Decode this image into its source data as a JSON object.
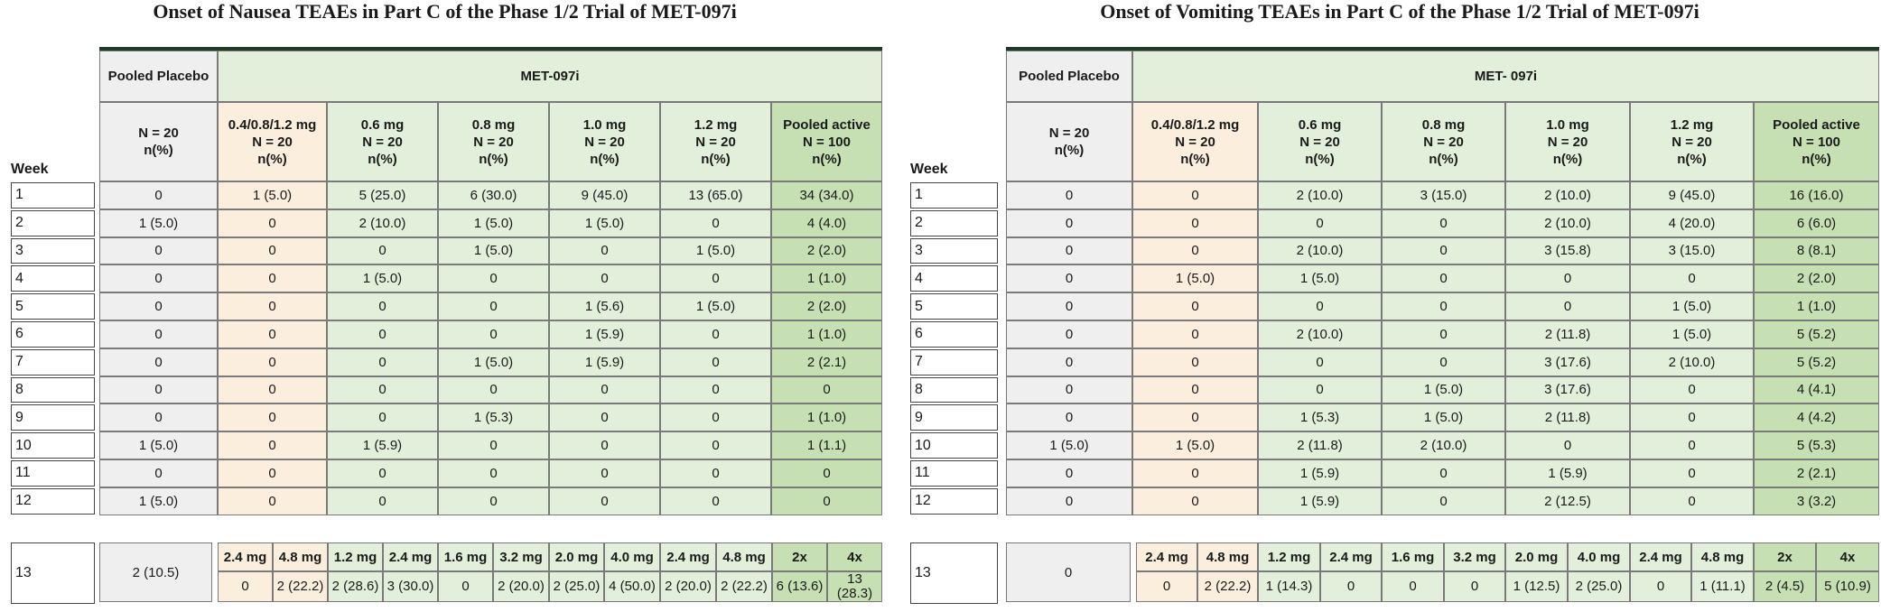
{
  "colors": {
    "placebo": "#efefef",
    "low_dose": "#fbeedc",
    "dose": "#e2efda",
    "pooled": "#c6e0b4",
    "rule": "#1f3b26"
  },
  "panels": [
    {
      "title": "Onset of Nausea TEAEs in Part C of the Phase 1/2 Trial of MET-097i",
      "week_label": "Week",
      "placebo_group": "Pooled Placebo",
      "active_group": "MET-097i",
      "columns": [
        {
          "dose": "",
          "n": "N = 20",
          "pct": "n(%)"
        },
        {
          "dose": "0.4/0.8/1.2 mg",
          "n": "N = 20",
          "pct": "n(%)"
        },
        {
          "dose": "0.6 mg",
          "n": "N = 20",
          "pct": "n(%)"
        },
        {
          "dose": "0.8 mg",
          "n": "N = 20",
          "pct": "n(%)"
        },
        {
          "dose": "1.0 mg",
          "n": "N = 20",
          "pct": "n(%)"
        },
        {
          "dose": "1.2 mg",
          "n": "N = 20",
          "pct": "n(%)"
        },
        {
          "dose": "Pooled active",
          "n": "N = 100",
          "pct": "n(%)"
        }
      ],
      "rows": [
        {
          "week": "1",
          "values": [
            "0",
            "1 (5.0)",
            "5 (25.0)",
            "6 (30.0)",
            "9 (45.0)",
            "13 (65.0)",
            "34 (34.0)"
          ]
        },
        {
          "week": "2",
          "values": [
            "1 (5.0)",
            "0",
            "2 (10.0)",
            "1 (5.0)",
            "1 (5.0)",
            "0",
            "4 (4.0)"
          ]
        },
        {
          "week": "3",
          "values": [
            "0",
            "0",
            "0",
            "1 (5.0)",
            "0",
            "1 (5.0)",
            "2 (2.0)"
          ]
        },
        {
          "week": "4",
          "values": [
            "0",
            "0",
            "1 (5.0)",
            "0",
            "0",
            "0",
            "1 (1.0)"
          ]
        },
        {
          "week": "5",
          "values": [
            "0",
            "0",
            "0",
            "0",
            "1 (5.6)",
            "1 (5.0)",
            "2 (2.0)"
          ]
        },
        {
          "week": "6",
          "values": [
            "0",
            "0",
            "0",
            "0",
            "1 (5.9)",
            "0",
            "1 (1.0)"
          ]
        },
        {
          "week": "7",
          "values": [
            "0",
            "0",
            "0",
            "1 (5.0)",
            "1 (5.9)",
            "0",
            "2 (2.1)"
          ]
        },
        {
          "week": "8",
          "values": [
            "0",
            "0",
            "0",
            "0",
            "0",
            "0",
            "0"
          ]
        },
        {
          "week": "9",
          "values": [
            "0",
            "0",
            "0",
            "1 (5.3)",
            "0",
            "0",
            "1 (1.0)"
          ]
        },
        {
          "week": "10",
          "values": [
            "1 (5.0)",
            "0",
            "1 (5.9)",
            "0",
            "0",
            "0",
            "1 (1.1)"
          ]
        },
        {
          "week": "11",
          "values": [
            "0",
            "0",
            "0",
            "0",
            "0",
            "0",
            "0"
          ]
        },
        {
          "week": "12",
          "values": [
            "1 (5.0)",
            "0",
            "0",
            "0",
            "0",
            "0",
            "0"
          ]
        }
      ],
      "week13": {
        "week": "13",
        "placebo": "2 (10.5)",
        "doses": [
          "2.4 mg",
          "4.8 mg",
          "1.2 mg",
          "2.4 mg",
          "1.6 mg",
          "3.2 mg",
          "2.0 mg",
          "4.0 mg",
          "2.4 mg",
          "4.8 mg",
          "2x",
          "4x"
        ],
        "values": [
          "0",
          "2 (22.2)",
          "2 (28.6)",
          "3 (30.0)",
          "0",
          "2 (20.0)",
          "2 (25.0)",
          "4 (50.0)",
          "2 (20.0)",
          "2 (22.2)",
          "6 (13.6)",
          "13 (28.3)"
        ]
      }
    },
    {
      "title": "Onset of Vomiting TEAEs in Part C of the Phase 1/2 Trial of MET-097i",
      "week_label": "Week",
      "placebo_group": "Pooled Placebo",
      "active_group": "MET- 097i",
      "columns": [
        {
          "dose": "",
          "n": "N = 20",
          "pct": "n(%)"
        },
        {
          "dose": "0.4/0.8/1.2 mg",
          "n": "N = 20",
          "pct": "n(%)"
        },
        {
          "dose": "0.6 mg",
          "n": "N = 20",
          "pct": "n(%)"
        },
        {
          "dose": "0.8 mg",
          "n": "N = 20",
          "pct": "n(%)"
        },
        {
          "dose": "1.0 mg",
          "n": "N = 20",
          "pct": "n(%)"
        },
        {
          "dose": "1.2 mg",
          "n": "N = 20",
          "pct": "n(%)"
        },
        {
          "dose": "Pooled active",
          "n": "N = 100",
          "pct": "n(%)"
        }
      ],
      "rows": [
        {
          "week": "1",
          "values": [
            "0",
            "0",
            "2 (10.0)",
            "3 (15.0)",
            "2 (10.0)",
            "9 (45.0)",
            "16 (16.0)"
          ]
        },
        {
          "week": "2",
          "values": [
            "0",
            "0",
            "0",
            "0",
            "2 (10.0)",
            "4 (20.0)",
            "6 (6.0)"
          ]
        },
        {
          "week": "3",
          "values": [
            "0",
            "0",
            "2 (10.0)",
            "0",
            "3 (15.8)",
            "3 (15.0)",
            "8 (8.1)"
          ]
        },
        {
          "week": "4",
          "values": [
            "0",
            "1 (5.0)",
            "1 (5.0)",
            "0",
            "0",
            "0",
            "2 (2.0)"
          ]
        },
        {
          "week": "5",
          "values": [
            "0",
            "0",
            "0",
            "0",
            "0",
            "1 (5.0)",
            "1 (1.0)"
          ]
        },
        {
          "week": "6",
          "values": [
            "0",
            "0",
            "2 (10.0)",
            "0",
            "2 (11.8)",
            "1 (5.0)",
            "5 (5.2)"
          ]
        },
        {
          "week": "7",
          "values": [
            "0",
            "0",
            "0",
            "0",
            "3 (17.6)",
            "2 (10.0)",
            "5 (5.2)"
          ]
        },
        {
          "week": "8",
          "values": [
            "0",
            "0",
            "0",
            "1 (5.0)",
            "3 (17.6)",
            "0",
            "4 (4.1)"
          ]
        },
        {
          "week": "9",
          "values": [
            "0",
            "0",
            "1 (5.3)",
            "1 (5.0)",
            "2 (11.8)",
            "0",
            "4 (4.2)"
          ]
        },
        {
          "week": "10",
          "values": [
            "1 (5.0)",
            "1 (5.0)",
            "2 (11.8)",
            "2 (10.0)",
            "0",
            "0",
            "5 (5.3)"
          ]
        },
        {
          "week": "11",
          "values": [
            "0",
            "0",
            "1 (5.9)",
            "0",
            "1 (5.9)",
            "0",
            "2 (2.1)"
          ]
        },
        {
          "week": "12",
          "values": [
            "0",
            "0",
            "1 (5.9)",
            "0",
            "2 (12.5)",
            "0",
            "3 (3.2)"
          ]
        }
      ],
      "week13": {
        "week": "13",
        "placebo": "0",
        "doses": [
          "2.4 mg",
          "4.8 mg",
          "1.2 mg",
          "2.4 mg",
          "1.6 mg",
          "3.2 mg",
          "2.0 mg",
          "4.0 mg",
          "2.4 mg",
          "4.8 mg",
          "2x",
          "4x"
        ],
        "values": [
          "0",
          "2 (22.2)",
          "1 (14.3)",
          "0",
          "0",
          "0",
          "1 (12.5)",
          "2 (25.0)",
          "0",
          "1 (11.1)",
          "2 (4.5)",
          "5 (10.9)"
        ]
      }
    }
  ]
}
